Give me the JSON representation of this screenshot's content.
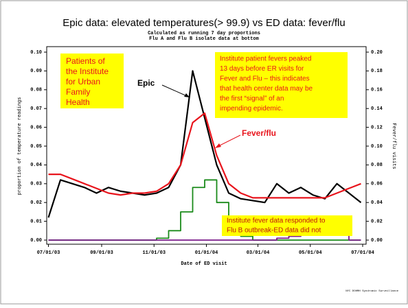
{
  "chart_data": {
    "type": "line",
    "title": "Epic data: elevated temperatures(> 99.9) vs  ED data: fever/flu",
    "subtitle": [
      "Calculated as running 7 day proportions",
      "Flu A and Flu B isolate data at bottom"
    ],
    "x_label": "Date of ED visit",
    "y_label": "proportion of temperature readings",
    "y2_label": "Fever/flu visits",
    "footer": "NYC DOHMH Syndromic Surveillance",
    "x": [
      "2003-07-01",
      "2003-07-15",
      "2003-07-29",
      "2003-08-12",
      "2003-08-26",
      "2003-09-09",
      "2003-09-23",
      "2003-10-07",
      "2003-10-21",
      "2003-11-04",
      "2003-11-18",
      "2003-12-02",
      "2003-12-16",
      "2003-12-30",
      "2004-01-13",
      "2004-01-27",
      "2004-02-10",
      "2004-02-24",
      "2004-03-09",
      "2004-03-23",
      "2004-04-06",
      "2004-04-20",
      "2004-05-04",
      "2004-05-18",
      "2004-06-01",
      "2004-06-15",
      "2004-06-29"
    ],
    "xlim": [
      "2003-06-29",
      "2004-07-05"
    ],
    "xticks": [
      {
        "value": "2003-07-01",
        "label": "07/01/03"
      },
      {
        "value": "2003-09-01",
        "label": "09/01/03"
      },
      {
        "value": "2003-11-01",
        "label": "11/01/03"
      },
      {
        "value": "2004-01-01",
        "label": "01/01/04"
      },
      {
        "value": "2004-03-01",
        "label": "03/01/04"
      },
      {
        "value": "2004-05-01",
        "label": "05/01/04"
      },
      {
        "value": "2004-07-01",
        "label": "07/01/04"
      }
    ],
    "ylim": [
      0,
      0.1
    ],
    "yticks": [
      {
        "value": 0,
        "label": "0.00"
      },
      {
        "value": 0.01,
        "label": "0.01"
      },
      {
        "value": 0.02,
        "label": "0.02"
      },
      {
        "value": 0.03,
        "label": "0.03"
      },
      {
        "value": 0.04,
        "label": "0.04"
      },
      {
        "value": 0.05,
        "label": "0.05"
      },
      {
        "value": 0.06,
        "label": "0.06"
      },
      {
        "value": 0.07,
        "label": "0.07"
      },
      {
        "value": 0.08,
        "label": "0.08"
      },
      {
        "value": 0.09,
        "label": "0.09"
      },
      {
        "value": 0.1,
        "label": "0.10"
      }
    ],
    "y2lim": [
      0,
      0.2
    ],
    "y2ticks": [
      {
        "value": 0,
        "label": "0.00"
      },
      {
        "value": 0.02,
        "label": "0.02"
      },
      {
        "value": 0.04,
        "label": "0.04"
      },
      {
        "value": 0.06,
        "label": "0.06"
      },
      {
        "value": 0.08,
        "label": "0.08"
      },
      {
        "value": 0.1,
        "label": "0.10"
      },
      {
        "value": 0.12,
        "label": "0.12"
      },
      {
        "value": 0.14,
        "label": "0.14"
      },
      {
        "value": 0.16,
        "label": "0.16"
      },
      {
        "value": 0.18,
        "label": "0.18"
      },
      {
        "value": 0.2,
        "label": "0.20"
      }
    ],
    "series": [
      {
        "name": "Epic",
        "color": "#000000",
        "axis": "y",
        "values": [
          0.012,
          0.032,
          0.03,
          0.028,
          0.025,
          0.028,
          0.026,
          0.025,
          0.024,
          0.025,
          0.028,
          0.04,
          0.09,
          0.065,
          0.04,
          0.025,
          0.022,
          0.021,
          0.02,
          0.03,
          0.025,
          0.028,
          0.024,
          0.022,
          0.03,
          0.025,
          0.02
        ]
      },
      {
        "name": "Fever/flu",
        "color": "#e8141c",
        "axis": "y2",
        "values": [
          0.07,
          0.07,
          0.065,
          0.06,
          0.055,
          0.05,
          0.048,
          0.05,
          0.05,
          0.052,
          0.06,
          0.08,
          0.125,
          0.135,
          0.09,
          0.06,
          0.05,
          0.045,
          0.045,
          0.045,
          0.045,
          0.045,
          0.045,
          0.045,
          0.05,
          0.055,
          0.06
        ]
      },
      {
        "color": "#1a8a1a",
        "axis": "y",
        "step": true,
        "values": [
          0,
          0,
          0,
          0,
          0,
          0,
          0,
          0,
          0,
          0.001,
          0.005,
          0.015,
          0.028,
          0.032,
          0.02,
          0.005,
          0.002,
          0,
          0,
          0,
          0,
          0,
          0,
          0,
          0,
          0,
          0
        ]
      },
      {
        "color": "#7a1a8a",
        "axis": "y",
        "step": true,
        "values": [
          0,
          0,
          0,
          0,
          0,
          0,
          0,
          0,
          0,
          0,
          0,
          0,
          0,
          0,
          0,
          0,
          0,
          0,
          0,
          0.001,
          0.002,
          0.005,
          0.005,
          0.003,
          0.004,
          0,
          0
        ]
      }
    ],
    "annotations": [
      {
        "lines": [
          "Patients of",
          "the Institute",
          "for Urban",
          "Family",
          "Health"
        ]
      },
      {
        "lines": [
          "Institute patient fevers peaked",
          "13 days before ER visits for",
          "Fever and Flu – this indicates",
          "that health center data may be",
          "the first “signal” of an",
          "impending epidemic."
        ]
      },
      {
        "lines": [
          "Institute fever data responded to",
          "Flu B outbreak-ED data did not"
        ]
      }
    ]
  }
}
